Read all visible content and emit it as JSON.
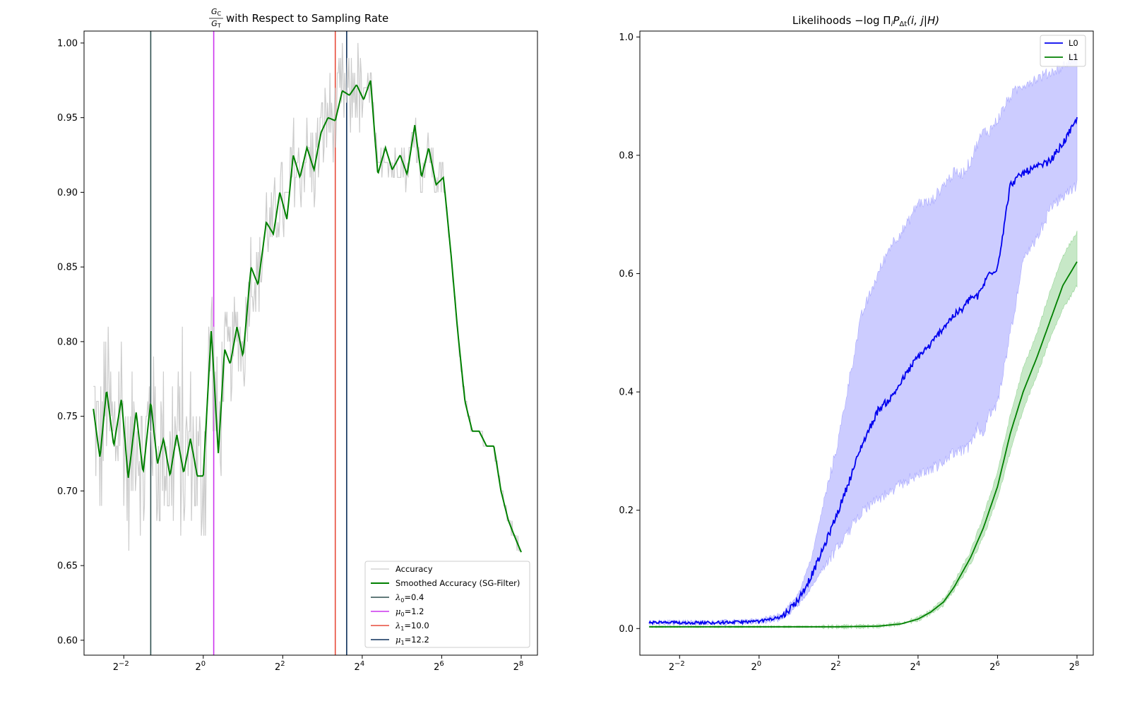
{
  "chart_data": [
    {
      "type": "line",
      "title": "with Respect to Sampling Rate",
      "title_fraction": {
        "numerator": "G",
        "numerator_sub": "C",
        "denominator": "G",
        "denominator_sub": "T"
      },
      "xscale": "log2",
      "xlim": [
        0.125,
        340
      ],
      "ylim": [
        0.59,
        1.008
      ],
      "xticks": [
        {
          "value": 0.25,
          "base": "2",
          "exp": "−2"
        },
        {
          "value": 1,
          "base": "2",
          "exp": "0"
        },
        {
          "value": 4,
          "base": "2",
          "exp": "2"
        },
        {
          "value": 16,
          "base": "2",
          "exp": "4"
        },
        {
          "value": 64,
          "base": "2",
          "exp": "6"
        },
        {
          "value": 256,
          "base": "2",
          "exp": "8"
        }
      ],
      "yticks": [
        "0.60",
        "0.65",
        "0.70",
        "0.75",
        "0.80",
        "0.85",
        "0.90",
        "0.95",
        "1.00"
      ],
      "series": [
        {
          "name": "Accuracy",
          "color": "#cccccc",
          "kind": "noisy"
        },
        {
          "name": "Smoothed Accuracy (SG-Filter)",
          "color": "#008000",
          "x": [
            0.147,
            0.165,
            0.185,
            0.21,
            0.24,
            0.27,
            0.31,
            0.35,
            0.4,
            0.45,
            0.5,
            0.56,
            0.63,
            0.71,
            0.8,
            0.9,
            1.0,
            1.15,
            1.3,
            1.45,
            1.6,
            1.8,
            2.0,
            2.3,
            2.6,
            3.0,
            3.4,
            3.8,
            4.3,
            4.8,
            5.4,
            6.1,
            6.9,
            7.8,
            8.8,
            10.0,
            11.3,
            12.8,
            14.5,
            16.4,
            18.5,
            21,
            24,
            27,
            31,
            35,
            40,
            45,
            51,
            58,
            66,
            75,
            85,
            96,
            109,
            123,
            140,
            159,
            180,
            205,
            232,
            256
          ],
          "y": [
            0.755,
            0.722,
            0.768,
            0.73,
            0.762,
            0.708,
            0.753,
            0.712,
            0.76,
            0.718,
            0.735,
            0.71,
            0.738,
            0.712,
            0.735,
            0.71,
            0.71,
            0.808,
            0.725,
            0.795,
            0.785,
            0.81,
            0.79,
            0.85,
            0.838,
            0.88,
            0.872,
            0.9,
            0.882,
            0.925,
            0.91,
            0.93,
            0.915,
            0.94,
            0.95,
            0.948,
            0.968,
            0.965,
            0.972,
            0.962,
            0.975,
            0.912,
            0.93,
            0.915,
            0.925,
            0.912,
            0.945,
            0.91,
            0.93,
            0.905,
            0.91,
            0.86,
            0.805,
            0.76,
            0.74,
            0.74,
            0.73,
            0.73,
            0.7,
            0.68,
            0.668,
            0.659
          ]
        }
      ],
      "vlines": [
        {
          "name": "λ",
          "sub": "0",
          "value_text": "=0.4",
          "x": 0.4,
          "color": "#2f4f4f"
        },
        {
          "name": "μ",
          "sub": "0",
          "value_text": "=1.2",
          "x": 1.2,
          "color": "#cc33ee"
        },
        {
          "name": "λ",
          "sub": "1",
          "value_text": "=10.0",
          "x": 10.0,
          "color": "#e74c3c"
        },
        {
          "name": "μ",
          "sub": "1",
          "value_text": "=12.2",
          "x": 12.2,
          "color": "#0b2e59"
        }
      ],
      "legend": "lower-right"
    },
    {
      "type": "line",
      "title": "Likelihoods −log Π",
      "title_math_tail": {
        "sub1": "i",
        "P": "P",
        "sub2": "Δt",
        "args": "(i, j|H)"
      },
      "xscale": "log2",
      "xlim": [
        0.125,
        340
      ],
      "ylim": [
        -0.045,
        1.01
      ],
      "xticks": [
        {
          "value": 0.25,
          "base": "2",
          "exp": "−2"
        },
        {
          "value": 1,
          "base": "2",
          "exp": "0"
        },
        {
          "value": 4,
          "base": "2",
          "exp": "2"
        },
        {
          "value": 16,
          "base": "2",
          "exp": "4"
        },
        {
          "value": 64,
          "base": "2",
          "exp": "6"
        },
        {
          "value": 256,
          "base": "2",
          "exp": "8"
        }
      ],
      "yticks": [
        "0.0",
        "0.2",
        "0.4",
        "0.6",
        "0.8",
        "1.0"
      ],
      "series": [
        {
          "name": "L0",
          "color": "#0000ee",
          "band_color": "#aaaaff",
          "x": [
            0.147,
            0.25,
            0.5,
            1.0,
            1.5,
            2.0,
            2.5,
            3.0,
            4.0,
            5.0,
            6.0,
            8.0,
            10.0,
            13.0,
            16.0,
            20.0,
            25.0,
            30.0,
            35.0,
            40.0,
            45.0,
            50.0,
            55.0,
            64.0,
            80.0,
            100.0,
            128.0,
            160.0,
            200.0,
            256.0
          ],
          "y": [
            0.01,
            0.01,
            0.01,
            0.012,
            0.02,
            0.05,
            0.09,
            0.13,
            0.2,
            0.26,
            0.31,
            0.37,
            0.39,
            0.43,
            0.46,
            0.48,
            0.51,
            0.53,
            0.54,
            0.56,
            0.56,
            0.58,
            0.6,
            0.61,
            0.75,
            0.77,
            0.78,
            0.79,
            0.82,
            0.86
          ],
          "lower": [
            0.008,
            0.008,
            0.008,
            0.01,
            0.015,
            0.04,
            0.07,
            0.1,
            0.14,
            0.17,
            0.2,
            0.22,
            0.23,
            0.25,
            0.26,
            0.27,
            0.28,
            0.3,
            0.3,
            0.31,
            0.34,
            0.33,
            0.36,
            0.38,
            0.5,
            0.62,
            0.66,
            0.71,
            0.73,
            0.75
          ],
          "upper": [
            0.012,
            0.012,
            0.012,
            0.015,
            0.025,
            0.06,
            0.12,
            0.2,
            0.32,
            0.44,
            0.53,
            0.6,
            0.65,
            0.68,
            0.72,
            0.72,
            0.75,
            0.77,
            0.77,
            0.79,
            0.82,
            0.84,
            0.84,
            0.86,
            0.9,
            0.92,
            0.93,
            0.94,
            0.95,
            0.97
          ]
        },
        {
          "name": "L1",
          "color": "#008000",
          "band_color": "#99d699",
          "x": [
            0.147,
            1.0,
            4.0,
            8.0,
            12.0,
            16.0,
            20.0,
            25.0,
            30.0,
            40.0,
            50.0,
            64.0,
            80.0,
            100.0,
            128.0,
            160.0,
            200.0,
            256.0
          ],
          "y": [
            0.003,
            0.003,
            0.003,
            0.004,
            0.008,
            0.016,
            0.028,
            0.045,
            0.07,
            0.12,
            0.17,
            0.24,
            0.33,
            0.4,
            0.46,
            0.52,
            0.58,
            0.62
          ],
          "lower": [
            0.002,
            0.002,
            0.002,
            0.003,
            0.007,
            0.014,
            0.025,
            0.04,
            0.065,
            0.11,
            0.155,
            0.22,
            0.3,
            0.37,
            0.43,
            0.49,
            0.54,
            0.58
          ],
          "upper": [
            0.004,
            0.004,
            0.004,
            0.005,
            0.01,
            0.018,
            0.031,
            0.05,
            0.078,
            0.13,
            0.19,
            0.265,
            0.36,
            0.44,
            0.5,
            0.57,
            0.63,
            0.67
          ]
        }
      ],
      "legend": "top-right"
    }
  ]
}
